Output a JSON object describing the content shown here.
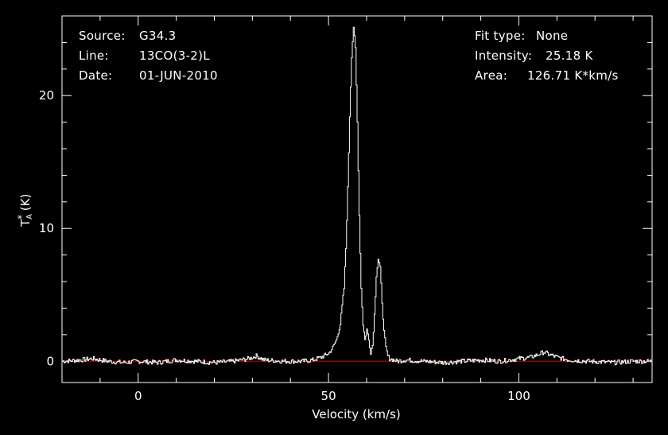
{
  "info_left": [
    {
      "label": "Source:",
      "value": "G34.3"
    },
    {
      "label": "Line:",
      "value": "13CO(3-2)L"
    },
    {
      "label": "Date:",
      "value": "01-JUN-2010"
    }
  ],
  "info_right": [
    {
      "label": "Fit type:",
      "value": "None"
    },
    {
      "label": "Intensity:",
      "value": "25.18 K"
    },
    {
      "label": "Area:",
      "value": "126.71 K*km/s"
    }
  ],
  "colors": {
    "background": "#000000",
    "axes": "#ffffff",
    "spectrum": "#ffffff",
    "baseline": "#cc0000"
  },
  "chart_data": {
    "type": "line",
    "title": "",
    "xlabel": "Velocity (km/s)",
    "ylabel_main": "T",
    "ylabel_sub": "A",
    "ylabel_sup": "*",
    "ylabel_unit": " (K)",
    "xlim": [
      -20,
      135
    ],
    "ylim": [
      -1.6,
      26
    ],
    "xticks": [
      0,
      50,
      100
    ],
    "yticks": [
      0,
      10,
      20
    ],
    "grid": false,
    "baseline_value": 0,
    "series": [
      {
        "x": [
          -20,
          -15,
          -12,
          -8,
          -4,
          0,
          5,
          10,
          15,
          20,
          25,
          29,
          31,
          33,
          38,
          43,
          46,
          48,
          50,
          51,
          52,
          53,
          54,
          54.5,
          55,
          55.5,
          56,
          56.5,
          57,
          57.5,
          58,
          58.5,
          59,
          59.5,
          60,
          60.5,
          61,
          61.5,
          62,
          62.5,
          63,
          63.5,
          64,
          64.5,
          65,
          65.5,
          66,
          67,
          68,
          70,
          75,
          80,
          85,
          90,
          95,
          100,
          103,
          105,
          106.5,
          108,
          110,
          113,
          118,
          125,
          130,
          135
        ],
        "y": [
          0.0,
          0.1,
          0.2,
          0.0,
          -0.1,
          0.0,
          -0.1,
          0.1,
          0.0,
          -0.1,
          0.0,
          0.2,
          0.4,
          0.1,
          0.0,
          0.0,
          0.1,
          0.3,
          0.6,
          1.0,
          1.6,
          2.8,
          5.5,
          8.5,
          13.0,
          18.5,
          23.0,
          25.2,
          23.5,
          18.0,
          11.0,
          5.5,
          2.8,
          1.6,
          2.4,
          1.6,
          0.7,
          1.2,
          3.5,
          6.5,
          7.7,
          7.0,
          4.5,
          2.2,
          1.0,
          0.4,
          0.2,
          0.1,
          0.0,
          0.1,
          0.0,
          -0.1,
          0.0,
          0.1,
          0.0,
          0.2,
          0.3,
          0.5,
          0.7,
          0.5,
          0.3,
          0.1,
          0.0,
          -0.1,
          0.0,
          0.0
        ]
      }
    ]
  }
}
